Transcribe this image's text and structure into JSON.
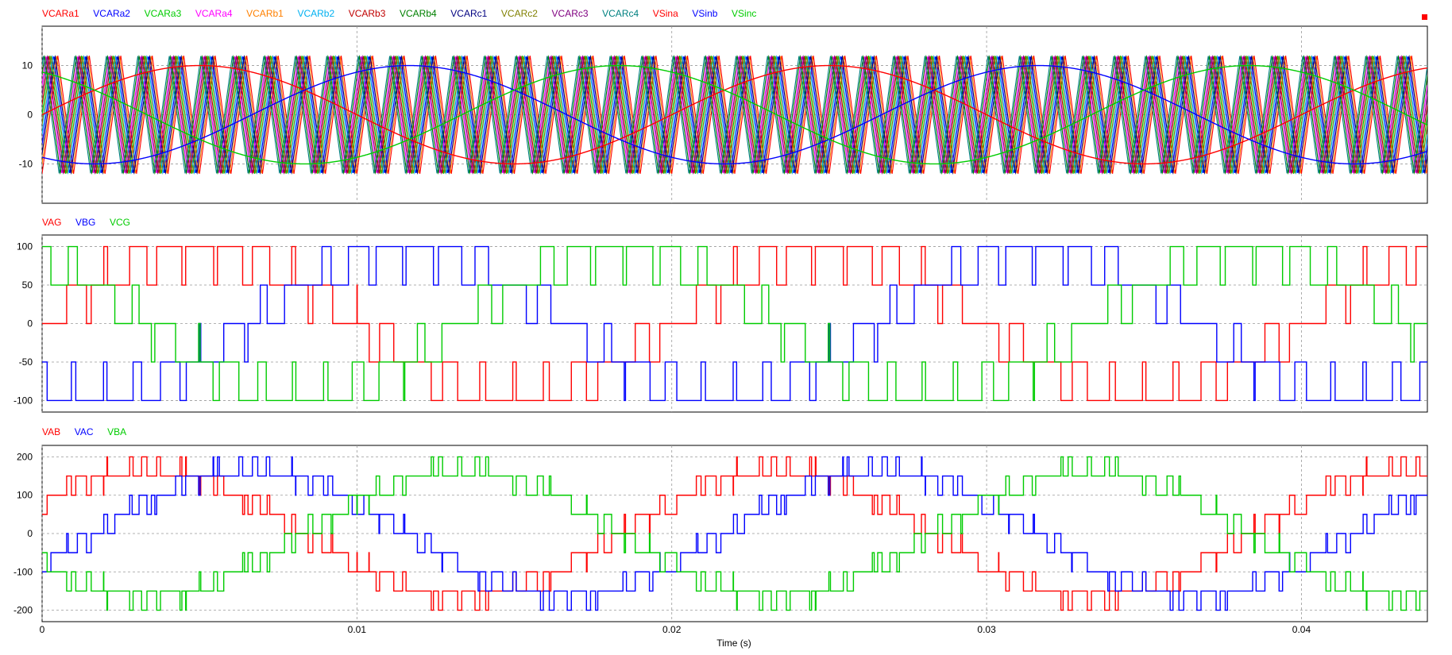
{
  "chart_data": {
    "type": "line",
    "xlabel": "Time (s)",
    "x_ticks": [
      "0",
      "0.01",
      "0.02",
      "0.03",
      "0.04"
    ],
    "x_tick_values": [
      0,
      0.01,
      0.02,
      0.03,
      0.04
    ],
    "xlim": [
      0,
      0.044
    ],
    "grid": "dashed",
    "legend_placement": "top-left of each panel",
    "panels": [
      {
        "ylim": [
          -18,
          18
        ],
        "y_ticks": [
          "10",
          "0",
          "-10"
        ],
        "y_tick_values": [
          10,
          0,
          -10
        ],
        "legend": [
          "VCARa1",
          "VCARa2",
          "VCARa3",
          "VCARa4",
          "VCARb1",
          "VCARb2",
          "VCARb3",
          "VCARb4",
          "VCARc1",
          "VCARc2",
          "VCARc3",
          "VCARc4",
          "VSina",
          "VSinb",
          "VSinc"
        ],
        "series": [
          {
            "name": "VCARa1",
            "color": "#ff0000",
            "kind": "triangular carrier",
            "frequency_hz": 1000,
            "range": [
              -12,
              12
            ]
          },
          {
            "name": "VCARa2",
            "color": "#0000ff",
            "kind": "triangular carrier",
            "frequency_hz": 1000,
            "range": [
              -12,
              12
            ]
          },
          {
            "name": "VCARa3",
            "color": "#00cc00",
            "kind": "triangular carrier",
            "frequency_hz": 1000,
            "range": [
              -12,
              12
            ]
          },
          {
            "name": "VCARa4",
            "color": "#ff00ff",
            "kind": "triangular carrier",
            "frequency_hz": 1000,
            "range": [
              -12,
              12
            ]
          },
          {
            "name": "VCARb1",
            "color": "#ff8000",
            "kind": "triangular carrier",
            "frequency_hz": 1000,
            "range": [
              -12,
              12
            ]
          },
          {
            "name": "VCARb2",
            "color": "#00b0f0",
            "kind": "triangular carrier",
            "frequency_hz": 1000,
            "range": [
              -12,
              12
            ]
          },
          {
            "name": "VCARb3",
            "color": "#c00000",
            "kind": "triangular carrier",
            "frequency_hz": 1000,
            "range": [
              -12,
              12
            ]
          },
          {
            "name": "VCARb4",
            "color": "#008000",
            "kind": "triangular carrier",
            "frequency_hz": 1000,
            "range": [
              -12,
              12
            ]
          },
          {
            "name": "VCARc1",
            "color": "#000080",
            "kind": "triangular carrier",
            "frequency_hz": 1000,
            "range": [
              -12,
              12
            ]
          },
          {
            "name": "VCARc2",
            "color": "#808000",
            "kind": "triangular carrier",
            "frequency_hz": 1000,
            "range": [
              -12,
              12
            ]
          },
          {
            "name": "VCARc3",
            "color": "#800080",
            "kind": "triangular carrier",
            "frequency_hz": 1000,
            "range": [
              -12,
              12
            ]
          },
          {
            "name": "VCARc4",
            "color": "#008080",
            "kind": "triangular carrier",
            "frequency_hz": 1000,
            "range": [
              -12,
              12
            ]
          },
          {
            "name": "VSina",
            "color": "#ff0000",
            "kind": "sine",
            "amplitude": 10,
            "frequency_hz": 50,
            "phase_deg": 0
          },
          {
            "name": "VSinb",
            "color": "#0000ff",
            "kind": "sine",
            "amplitude": 10,
            "frequency_hz": 50,
            "phase_deg": 120
          },
          {
            "name": "VSinc",
            "color": "#00cc00",
            "kind": "sine",
            "amplitude": 10,
            "frequency_hz": 50,
            "phase_deg": -120
          }
        ]
      },
      {
        "ylim": [
          -115,
          115
        ],
        "y_ticks": [
          "100",
          "50",
          "0",
          "-50",
          "-100"
        ],
        "y_tick_values": [
          100,
          50,
          0,
          -50,
          -100
        ],
        "legend": [
          "VAG",
          "VBG",
          "VCG"
        ],
        "series": [
          {
            "name": "VAG",
            "color": "#ff0000",
            "kind": "multilevel PWM",
            "levels": [
              -100,
              -50,
              0,
              50,
              100
            ],
            "phase_deg": 0
          },
          {
            "name": "VBG",
            "color": "#0000ff",
            "kind": "multilevel PWM",
            "levels": [
              -100,
              -50,
              0,
              50,
              100
            ],
            "phase_deg": 120
          },
          {
            "name": "VCG",
            "color": "#00cc00",
            "kind": "multilevel PWM",
            "levels": [
              -100,
              -50,
              0,
              50,
              100
            ],
            "phase_deg": -120
          }
        ]
      },
      {
        "ylim": [
          -230,
          230
        ],
        "y_ticks": [
          "200",
          "100",
          "0",
          "-100",
          "-200"
        ],
        "y_tick_values": [
          200,
          100,
          0,
          -100,
          -200
        ],
        "legend": [
          "VAB",
          "VAC",
          "VBA"
        ],
        "series": [
          {
            "name": "VAB",
            "color": "#ff0000",
            "kind": "line-to-line PWM",
            "levels": [
              -200,
              -100,
              0,
              100,
              200
            ]
          },
          {
            "name": "VAC",
            "color": "#0000ff",
            "kind": "line-to-line PWM",
            "levels": [
              -200,
              -100,
              0,
              100,
              200
            ]
          },
          {
            "name": "VBA",
            "color": "#00cc00",
            "kind": "line-to-line PWM",
            "levels": [
              -200,
              -100,
              0,
              100,
              200
            ]
          }
        ]
      }
    ]
  },
  "marker_color": "#ff0000"
}
